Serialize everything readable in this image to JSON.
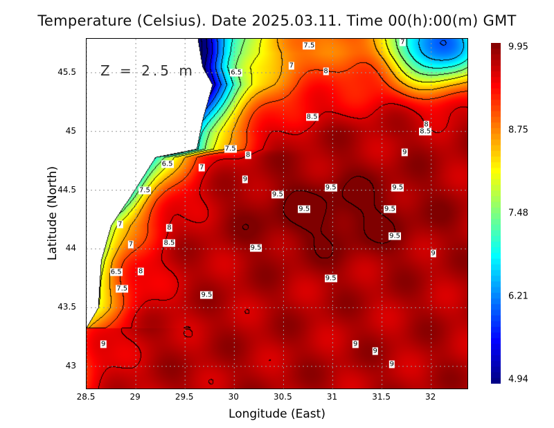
{
  "title": "Temperature (Celsius). Date 2025.03.11. Time 00(h):00(m) GMT",
  "depth_label": "Z = 2.5 m",
  "chart_data": {
    "type": "heatmap",
    "title": "Temperature (Celsius). Date 2025.03.11. Time 00(h):00(m) GMT",
    "xlabel": "Longitude (East)",
    "ylabel": "Latitude (North)",
    "xlim": [
      28.5,
      32.4
    ],
    "ylim": [
      42.8,
      45.79
    ],
    "xticks": [
      "28.5",
      "29",
      "29.5",
      "30",
      "30.5",
      "31",
      "31.5",
      "32"
    ],
    "yticks": [
      "43",
      "43.5",
      "44",
      "44.5",
      "45",
      "45.5"
    ],
    "grid": true,
    "colorbar": {
      "min": 4.94,
      "max": 9.95,
      "ticks": [
        "9.95",
        "8.75",
        "7.48",
        "6.21",
        "4.94"
      ],
      "colormap": "jet"
    },
    "contour_labels": [
      {
        "v": "7.5",
        "lon": 30.76,
        "lat": 45.73
      },
      {
        "v": "7",
        "lon": 31.71,
        "lat": 45.76
      },
      {
        "v": "6.5",
        "lon": 30.02,
        "lat": 45.5
      },
      {
        "v": "7",
        "lon": 30.58,
        "lat": 45.56
      },
      {
        "v": "8",
        "lon": 30.93,
        "lat": 45.51
      },
      {
        "v": "8.5",
        "lon": 30.79,
        "lat": 45.12
      },
      {
        "v": "8",
        "lon": 31.95,
        "lat": 45.06
      },
      {
        "v": "8.5",
        "lon": 31.94,
        "lat": 45.0
      },
      {
        "v": "9",
        "lon": 31.73,
        "lat": 44.82
      },
      {
        "v": "7.5",
        "lon": 29.96,
        "lat": 44.85
      },
      {
        "v": "8",
        "lon": 30.14,
        "lat": 44.8
      },
      {
        "v": "7",
        "lon": 29.67,
        "lat": 44.69
      },
      {
        "v": "6.5",
        "lon": 29.32,
        "lat": 44.72
      },
      {
        "v": "9",
        "lon": 30.11,
        "lat": 44.59
      },
      {
        "v": "7.5",
        "lon": 29.09,
        "lat": 44.5
      },
      {
        "v": "9.5",
        "lon": 30.98,
        "lat": 44.52
      },
      {
        "v": "9.5",
        "lon": 31.66,
        "lat": 44.52
      },
      {
        "v": "9.5",
        "lon": 30.44,
        "lat": 44.46
      },
      {
        "v": "9.5",
        "lon": 30.71,
        "lat": 44.34
      },
      {
        "v": "9.5",
        "lon": 31.58,
        "lat": 44.34
      },
      {
        "v": "7",
        "lon": 28.84,
        "lat": 44.21
      },
      {
        "v": "8",
        "lon": 29.34,
        "lat": 44.18
      },
      {
        "v": "9.5",
        "lon": 31.63,
        "lat": 44.11
      },
      {
        "v": "7",
        "lon": 28.95,
        "lat": 44.04
      },
      {
        "v": "8.5",
        "lon": 29.34,
        "lat": 44.05
      },
      {
        "v": "9.5",
        "lon": 30.22,
        "lat": 44.01
      },
      {
        "v": "9",
        "lon": 32.02,
        "lat": 43.96
      },
      {
        "v": "6.5",
        "lon": 28.8,
        "lat": 43.8
      },
      {
        "v": "8",
        "lon": 29.05,
        "lat": 43.81
      },
      {
        "v": "9.5",
        "lon": 30.98,
        "lat": 43.75
      },
      {
        "v": "7.5",
        "lon": 28.86,
        "lat": 43.66
      },
      {
        "v": "9.5",
        "lon": 29.72,
        "lat": 43.61
      },
      {
        "v": "9",
        "lon": 28.67,
        "lat": 43.19
      },
      {
        "v": "9",
        "lon": 31.23,
        "lat": 43.19
      },
      {
        "v": "9",
        "lon": 31.43,
        "lat": 43.13
      },
      {
        "v": "9",
        "lon": 31.6,
        "lat": 43.02
      }
    ]
  }
}
